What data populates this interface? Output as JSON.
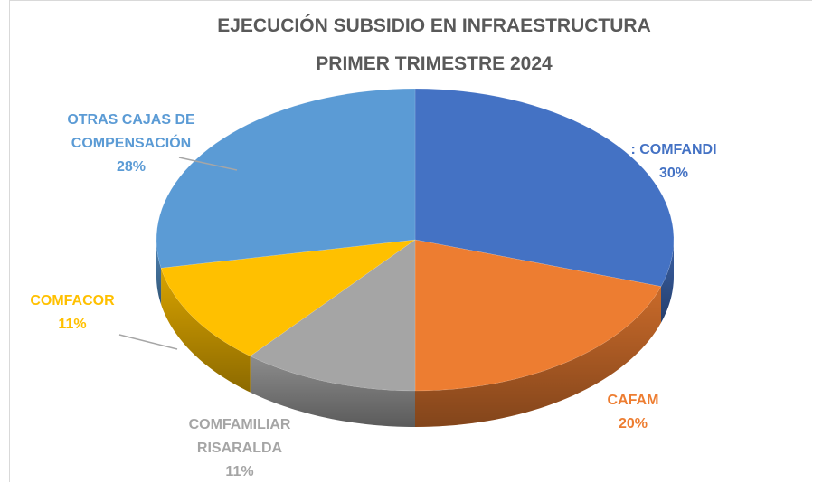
{
  "chart_data": {
    "type": "pie3d",
    "title": "EJECUCIÓN SUBSIDIO EN INFRAESTRUCTURA  PRIMER TRIMESTRE 2024",
    "categories": [
      ": COMFANDI",
      "CAFAM",
      "COMFAMILIAR RISARALDA",
      "COMFACOR",
      "OTRAS CAJAS DE COMPENSACIÓN"
    ],
    "values": [
      30,
      20,
      11,
      11,
      28
    ],
    "value_labels": [
      "30%",
      "20%",
      "11%",
      "11%",
      "28%"
    ],
    "colors": [
      "#4472c4",
      "#ed7d31",
      "#a5a5a5",
      "#ffc000",
      "#5b9bd5"
    ]
  }
}
